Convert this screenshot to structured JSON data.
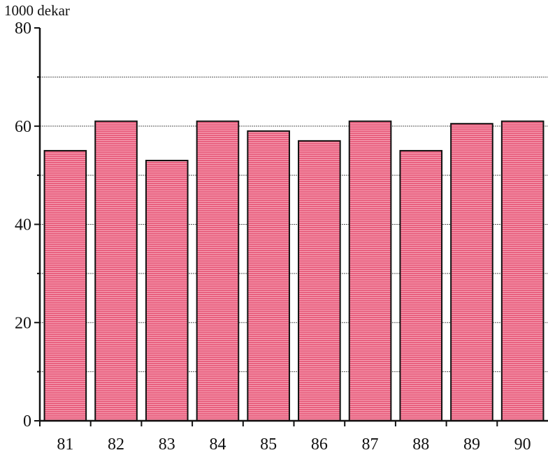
{
  "chart_data": {
    "type": "bar",
    "ylabel": "1000 dekar",
    "categories": [
      "81",
      "82",
      "83",
      "84",
      "85",
      "86",
      "87",
      "88",
      "89",
      "90"
    ],
    "values": [
      55,
      61,
      53,
      61,
      59,
      57,
      61,
      55,
      60.5,
      61
    ],
    "ylim": [
      0,
      80
    ],
    "yticks": [
      0,
      20,
      40,
      60,
      80
    ],
    "grid": true,
    "bar_color": "#e8607f",
    "legend": "none"
  }
}
